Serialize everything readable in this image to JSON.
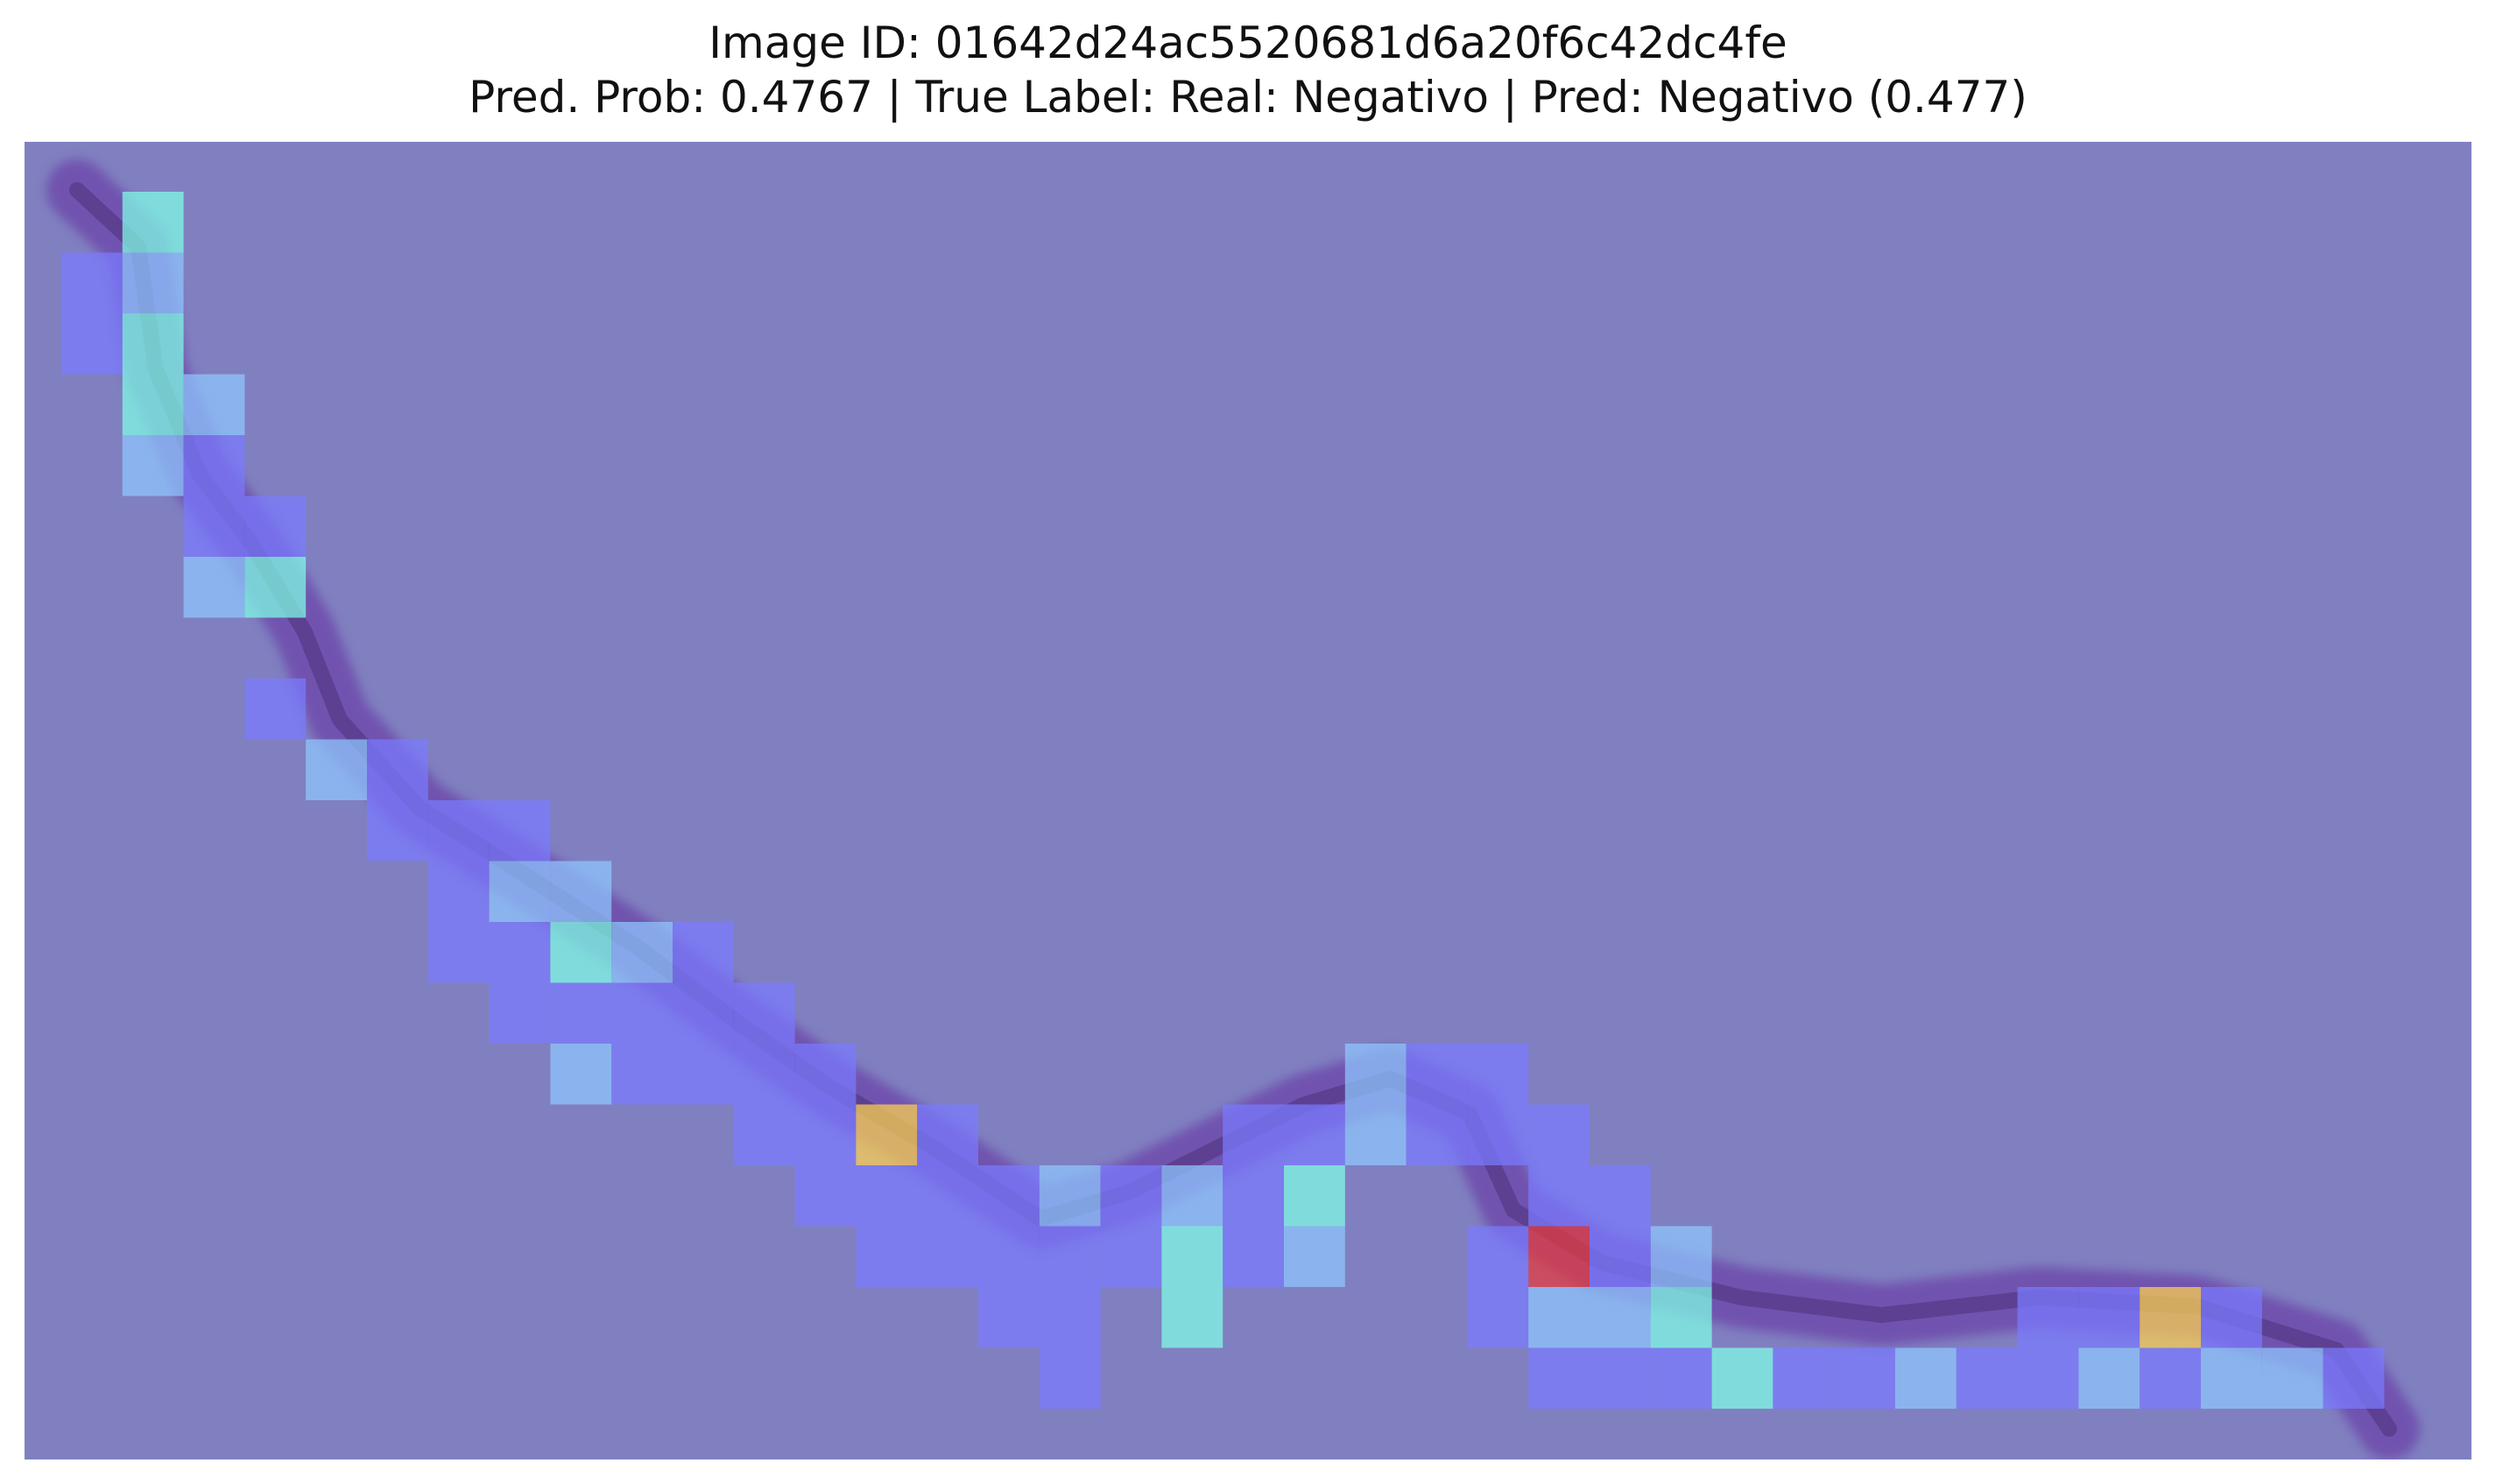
{
  "title": {
    "line1": "Image ID: 01642d24ac5520681d6a20f6c42dc4fe",
    "line2": "Pred. Prob: 0.4767 | True Label: Real: Negativo | Pred: Negativo (0.477)"
  },
  "colors": {
    "background_overlay": "#8080c0",
    "tissue": "#6a3fa8",
    "tissue_dark": "#3a1e5a",
    "cell_low": "#7a7aff",
    "cell_mid_low": "#8fc8ff",
    "cell_mid": "#80ffe6",
    "cell_high": "#ffd24d",
    "cell_max": "#e83a3a"
  },
  "heatmap": {
    "grid": {
      "cols": 40,
      "rows": 21
    },
    "cells": [
      {
        "c": 1,
        "r": 0,
        "v": 0.45
      },
      {
        "c": 0,
        "r": 1,
        "v": 0.1
      },
      {
        "c": 1,
        "r": 1,
        "v": 0.2
      },
      {
        "c": 0,
        "r": 2,
        "v": 0.1
      },
      {
        "c": 1,
        "r": 2,
        "v": 0.5
      },
      {
        "c": 1,
        "r": 3,
        "v": 0.45
      },
      {
        "c": 2,
        "r": 3,
        "v": 0.3
      },
      {
        "c": 1,
        "r": 4,
        "v": 0.25
      },
      {
        "c": 2,
        "r": 4,
        "v": 0.1
      },
      {
        "c": 2,
        "r": 5,
        "v": 0.1
      },
      {
        "c": 3,
        "r": 5,
        "v": 0.1
      },
      {
        "c": 2,
        "r": 6,
        "v": 0.2
      },
      {
        "c": 3,
        "r": 6,
        "v": 0.5
      },
      {
        "c": 3,
        "r": 8,
        "v": 0.1
      },
      {
        "c": 4,
        "r": 9,
        "v": 0.3
      },
      {
        "c": 5,
        "r": 9,
        "v": 0.1
      },
      {
        "c": 5,
        "r": 10,
        "v": 0.1
      },
      {
        "c": 6,
        "r": 10,
        "v": 0.1
      },
      {
        "c": 7,
        "r": 10,
        "v": 0.1
      },
      {
        "c": 6,
        "r": 11,
        "v": 0.1
      },
      {
        "c": 7,
        "r": 11,
        "v": 0.3
      },
      {
        "c": 8,
        "r": 11,
        "v": 0.3
      },
      {
        "c": 6,
        "r": 12,
        "v": 0.1
      },
      {
        "c": 7,
        "r": 12,
        "v": 0.1
      },
      {
        "c": 8,
        "r": 12,
        "v": 0.45
      },
      {
        "c": 9,
        "r": 12,
        "v": 0.2
      },
      {
        "c": 10,
        "r": 12,
        "v": 0.1
      },
      {
        "c": 7,
        "r": 13,
        "v": 0.1
      },
      {
        "c": 8,
        "r": 13,
        "v": 0.1
      },
      {
        "c": 9,
        "r": 13,
        "v": 0.1
      },
      {
        "c": 10,
        "r": 13,
        "v": 0.1
      },
      {
        "c": 11,
        "r": 13,
        "v": 0.1
      },
      {
        "c": 8,
        "r": 14,
        "v": 0.2
      },
      {
        "c": 9,
        "r": 14,
        "v": 0.1
      },
      {
        "c": 10,
        "r": 14,
        "v": 0.1
      },
      {
        "c": 11,
        "r": 14,
        "v": 0.1
      },
      {
        "c": 12,
        "r": 14,
        "v": 0.1
      },
      {
        "c": 11,
        "r": 15,
        "v": 0.1
      },
      {
        "c": 12,
        "r": 15,
        "v": 0.1
      },
      {
        "c": 13,
        "r": 15,
        "v": 0.8
      },
      {
        "c": 14,
        "r": 15,
        "v": 0.1
      },
      {
        "c": 12,
        "r": 16,
        "v": 0.1
      },
      {
        "c": 13,
        "r": 16,
        "v": 0.1
      },
      {
        "c": 14,
        "r": 16,
        "v": 0.1
      },
      {
        "c": 15,
        "r": 16,
        "v": 0.1
      },
      {
        "c": 16,
        "r": 16,
        "v": 0.3
      },
      {
        "c": 17,
        "r": 16,
        "v": 0.1
      },
      {
        "c": 18,
        "r": 16,
        "v": 0.3
      },
      {
        "c": 19,
        "r": 16,
        "v": 0.1
      },
      {
        "c": 13,
        "r": 17,
        "v": 0.1
      },
      {
        "c": 14,
        "r": 17,
        "v": 0.1
      },
      {
        "c": 15,
        "r": 17,
        "v": 0.1
      },
      {
        "c": 16,
        "r": 17,
        "v": 0.1
      },
      {
        "c": 17,
        "r": 17,
        "v": 0.1
      },
      {
        "c": 18,
        "r": 17,
        "v": 0.45
      },
      {
        "c": 19,
        "r": 17,
        "v": 0.1
      },
      {
        "c": 20,
        "r": 17,
        "v": 0.2
      },
      {
        "c": 15,
        "r": 18,
        "v": 0.1
      },
      {
        "c": 16,
        "r": 18,
        "v": 0.1
      },
      {
        "c": 18,
        "r": 18,
        "v": 0.5
      },
      {
        "c": 16,
        "r": 19,
        "v": 0.1
      },
      {
        "c": 20,
        "r": 15,
        "v": 0.1
      },
      {
        "c": 21,
        "r": 15,
        "v": 0.2
      },
      {
        "c": 22,
        "r": 15,
        "v": 0.1
      },
      {
        "c": 21,
        "r": 14,
        "v": 0.3
      },
      {
        "c": 22,
        "r": 14,
        "v": 0.1
      },
      {
        "c": 23,
        "r": 14,
        "v": 0.1
      },
      {
        "c": 19,
        "r": 15,
        "v": 0.1
      },
      {
        "c": 20,
        "r": 16,
        "v": 0.5
      },
      {
        "c": 23,
        "r": 15,
        "v": 0.1
      },
      {
        "c": 24,
        "r": 15,
        "v": 0.1
      },
      {
        "c": 24,
        "r": 16,
        "v": 0.1
      },
      {
        "c": 25,
        "r": 16,
        "v": 0.1
      },
      {
        "c": 24,
        "r": 17,
        "v": 0.95
      },
      {
        "c": 25,
        "r": 17,
        "v": 0.1
      },
      {
        "c": 26,
        "r": 17,
        "v": 0.2
      },
      {
        "c": 23,
        "r": 17,
        "v": 0.1
      },
      {
        "c": 23,
        "r": 18,
        "v": 0.1
      },
      {
        "c": 24,
        "r": 18,
        "v": 0.3
      },
      {
        "c": 25,
        "r": 18,
        "v": 0.3
      },
      {
        "c": 26,
        "r": 18,
        "v": 0.45
      },
      {
        "c": 24,
        "r": 19,
        "v": 0.1
      },
      {
        "c": 25,
        "r": 19,
        "v": 0.1
      },
      {
        "c": 26,
        "r": 19,
        "v": 0.1
      },
      {
        "c": 27,
        "r": 19,
        "v": 0.45
      },
      {
        "c": 28,
        "r": 19,
        "v": 0.1
      },
      {
        "c": 29,
        "r": 19,
        "v": 0.1
      },
      {
        "c": 30,
        "r": 19,
        "v": 0.2
      },
      {
        "c": 31,
        "r": 19,
        "v": 0.1
      },
      {
        "c": 32,
        "r": 19,
        "v": 0.1
      },
      {
        "c": 33,
        "r": 19,
        "v": 0.3
      },
      {
        "c": 34,
        "r": 19,
        "v": 0.1
      },
      {
        "c": 35,
        "r": 19,
        "v": 0.2
      },
      {
        "c": 36,
        "r": 19,
        "v": 0.3
      },
      {
        "c": 37,
        "r": 19,
        "v": 0.1
      },
      {
        "c": 28,
        "r": 20,
        "v": 0.1
      },
      {
        "c": 29,
        "r": 20,
        "v": 0.2
      },
      {
        "c": 30,
        "r": 20,
        "v": 0.1
      },
      {
        "c": 31,
        "r": 20,
        "v": 0.3
      },
      {
        "c": 32,
        "r": 20,
        "v": 0.1
      },
      {
        "c": 33,
        "r": 20,
        "v": 0.1
      },
      {
        "c": 34,
        "r": 20,
        "v": 0.1
      },
      {
        "c": 35,
        "r": 20,
        "v": 0.95
      },
      {
        "c": 36,
        "r": 20,
        "v": 0.3
      },
      {
        "c": 37,
        "r": 20,
        "v": 0.3
      },
      {
        "c": 38,
        "r": 20,
        "v": 0.5
      },
      {
        "c": 32,
        "r": 18,
        "v": 0.1
      },
      {
        "c": 33,
        "r": 18,
        "v": 0.1
      },
      {
        "c": 34,
        "r": 18,
        "v": 0.8
      },
      {
        "c": 35,
        "r": 18,
        "v": 0.1
      }
    ]
  }
}
